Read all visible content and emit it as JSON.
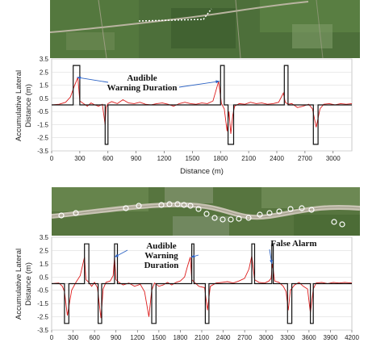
{
  "chart_data": [
    {
      "type": "line",
      "xlabel": "Distance (m)",
      "ylabel": "Accumulative Lateral Distance (m)",
      "xlim": [
        0,
        3200
      ],
      "ylim": [
        -3.5,
        3.5
      ],
      "xticks": [
        "0",
        "300",
        "600",
        "900",
        "1200",
        "1500",
        "1800",
        "2100",
        "2400",
        "2700",
        "3000"
      ],
      "yticks": [
        "3.5",
        "2.5",
        "1.5",
        "0.5",
        "-0.5",
        "-1.5",
        "-2.5",
        "-3.5"
      ],
      "annotations": [
        {
          "text_lines": [
            "Audible",
            "Warning Duration"
          ],
          "arrow_targets": [
            [
              270,
              2.1
            ],
            [
              1790,
              1.8
            ]
          ]
        }
      ],
      "series": [
        {
          "color": "#dd1c1c",
          "x": [
            0,
            80,
            150,
            200,
            240,
            280,
            300,
            340,
            380,
            420,
            460,
            500,
            540,
            570,
            580,
            600,
            640,
            700,
            760,
            820,
            880,
            940,
            1000,
            1060,
            1120,
            1180,
            1240,
            1300,
            1360,
            1420,
            1480,
            1540,
            1600,
            1660,
            1720,
            1780,
            1810,
            1840,
            1870,
            1890,
            1910,
            1930,
            1950,
            2000,
            2060,
            2120,
            2180,
            2240,
            2300,
            2360,
            2420,
            2470,
            2490,
            2520,
            2560,
            2620,
            2680,
            2740,
            2780,
            2820,
            2860,
            2900,
            2960,
            3020,
            3080,
            3140,
            3200
          ],
          "y": [
            0,
            0.05,
            0.2,
            0.6,
            1.4,
            2.1,
            0.3,
            0.1,
            -0.1,
            0.15,
            0.0,
            -0.1,
            0.05,
            -1.5,
            -0.2,
            0.1,
            0.25,
            0.1,
            0.4,
            0.15,
            0.1,
            0.2,
            0.05,
            0.0,
            0.1,
            0.15,
            0.05,
            -0.1,
            0.1,
            0.2,
            0.1,
            0.05,
            0.15,
            0.1,
            0.3,
            1.8,
            0.1,
            -0.3,
            -2.0,
            -0.5,
            -2.2,
            -0.8,
            -0.1,
            0.1,
            0.05,
            0.2,
            0.1,
            0.15,
            0.05,
            0.1,
            0.2,
            0.9,
            0.2,
            0.05,
            0.1,
            -0.2,
            -0.1,
            0.05,
            -0.3,
            -1.7,
            -0.3,
            0.05,
            0.1,
            0.0,
            0.1,
            0.05,
            0.1
          ]
        },
        {
          "color": "#111111",
          "x": [
            0,
            230,
            230,
            300,
            300,
            570,
            570,
            600,
            600,
            1800,
            1800,
            1840,
            1840,
            1880,
            1880,
            1940,
            1940,
            2480,
            2480,
            2520,
            2520,
            2790,
            2790,
            2840,
            2840,
            3200
          ],
          "y": [
            0,
            0,
            3,
            3,
            0,
            0,
            -3,
            -3,
            0,
            0,
            3,
            3,
            0,
            0,
            -3,
            -3,
            0,
            0,
            3,
            3,
            0,
            0,
            -3,
            -3,
            0,
            0
          ]
        }
      ]
    },
    {
      "type": "line",
      "xlabel": "",
      "ylabel": "Accumulative Lateral Distance (m)",
      "xlim": [
        0,
        4200
      ],
      "ylim": [
        -3.5,
        3.5
      ],
      "xticks": [
        "0",
        "300",
        "600",
        "900",
        "1200",
        "1500",
        "1800",
        "2100",
        "2400",
        "2700",
        "3000",
        "3300",
        "3600",
        "3900",
        "4200"
      ],
      "yticks": [
        "3.5",
        "2.5",
        "1.5",
        "0.5",
        "-0.5",
        "-1.5",
        "-2.5",
        "-3.5"
      ],
      "annotations": [
        {
          "text_lines": [
            "Audible",
            "Warning",
            "Duration"
          ],
          "arrow_targets": [
            [
              880,
              2.0
            ],
            [
              1950,
              2.0
            ]
          ]
        },
        {
          "text_lines": [
            "False Alarm"
          ],
          "arrow_targets": [
            [
              3080,
              1.5
            ]
          ]
        }
      ],
      "series": [
        {
          "color": "#dd1c1c",
          "x": [
            0,
            100,
            150,
            180,
            220,
            280,
            340,
            400,
            460,
            480,
            520,
            560,
            600,
            640,
            690,
            720,
            760,
            820,
            860,
            880,
            900,
            940,
            1000,
            1080,
            1160,
            1240,
            1300,
            1360,
            1400,
            1440,
            1500,
            1560,
            1620,
            1680,
            1740,
            1800,
            1860,
            1900,
            1940,
            1960,
            2000,
            2060,
            2140,
            2180,
            2220,
            2300,
            2380,
            2460,
            2540,
            2620,
            2700,
            2760,
            2800,
            2840,
            2900,
            2980,
            3040,
            3070,
            3090,
            3120,
            3180,
            3240,
            3280,
            3310,
            3340,
            3400,
            3460,
            3520,
            3580,
            3620,
            3660,
            3700,
            3780,
            3860,
            3940,
            4020,
            4100,
            4200
          ],
          "y": [
            0,
            0.05,
            -0.2,
            -0.6,
            -2.4,
            -0.5,
            0.1,
            0.6,
            2.0,
            0.3,
            0.1,
            -0.2,
            0.1,
            -0.3,
            -2.6,
            -0.4,
            0.1,
            0.2,
            0.6,
            2.0,
            0.3,
            0.1,
            -0.1,
            0.05,
            -0.2,
            -0.05,
            -0.6,
            -2.5,
            -0.5,
            0.05,
            -0.2,
            -0.1,
            0.1,
            -0.1,
            0.1,
            0.2,
            0.5,
            1.3,
            2.0,
            0.3,
            0.1,
            -0.2,
            -0.3,
            -2.0,
            -0.2,
            0.05,
            0.1,
            0.15,
            0.05,
            0.2,
            0.4,
            1.1,
            2.1,
            0.3,
            0.1,
            0.05,
            0.2,
            0.4,
            1.5,
            0.2,
            0.1,
            -0.2,
            -0.6,
            -2.0,
            -0.5,
            -0.1,
            0.1,
            -0.2,
            -0.4,
            -2.2,
            -0.4,
            0.05,
            0.1,
            0.0,
            0.1,
            0.05,
            0.1,
            0.05
          ]
        },
        {
          "color": "#111111",
          "x": [
            0,
            180,
            180,
            240,
            240,
            460,
            460,
            520,
            520,
            650,
            650,
            700,
            700,
            880,
            880,
            920,
            920,
            1400,
            1400,
            1460,
            1460,
            1960,
            1960,
            1990,
            1990,
            2150,
            2150,
            2200,
            2200,
            2800,
            2800,
            2840,
            2840,
            3080,
            3080,
            3100,
            3100,
            3300,
            3300,
            3360,
            3360,
            3620,
            3620,
            3660,
            3660,
            4200
          ],
          "y": [
            0,
            0,
            -3,
            -3,
            0,
            0,
            3,
            3,
            0,
            0,
            -3,
            -3,
            0,
            0,
            3,
            3,
            0,
            0,
            -3,
            -3,
            0,
            0,
            3,
            3,
            0,
            0,
            -3,
            -3,
            0,
            0,
            3,
            3,
            0,
            0,
            3,
            3,
            0,
            0,
            -3,
            -3,
            0,
            0,
            -3,
            -3,
            0,
            0
          ]
        }
      ]
    }
  ]
}
